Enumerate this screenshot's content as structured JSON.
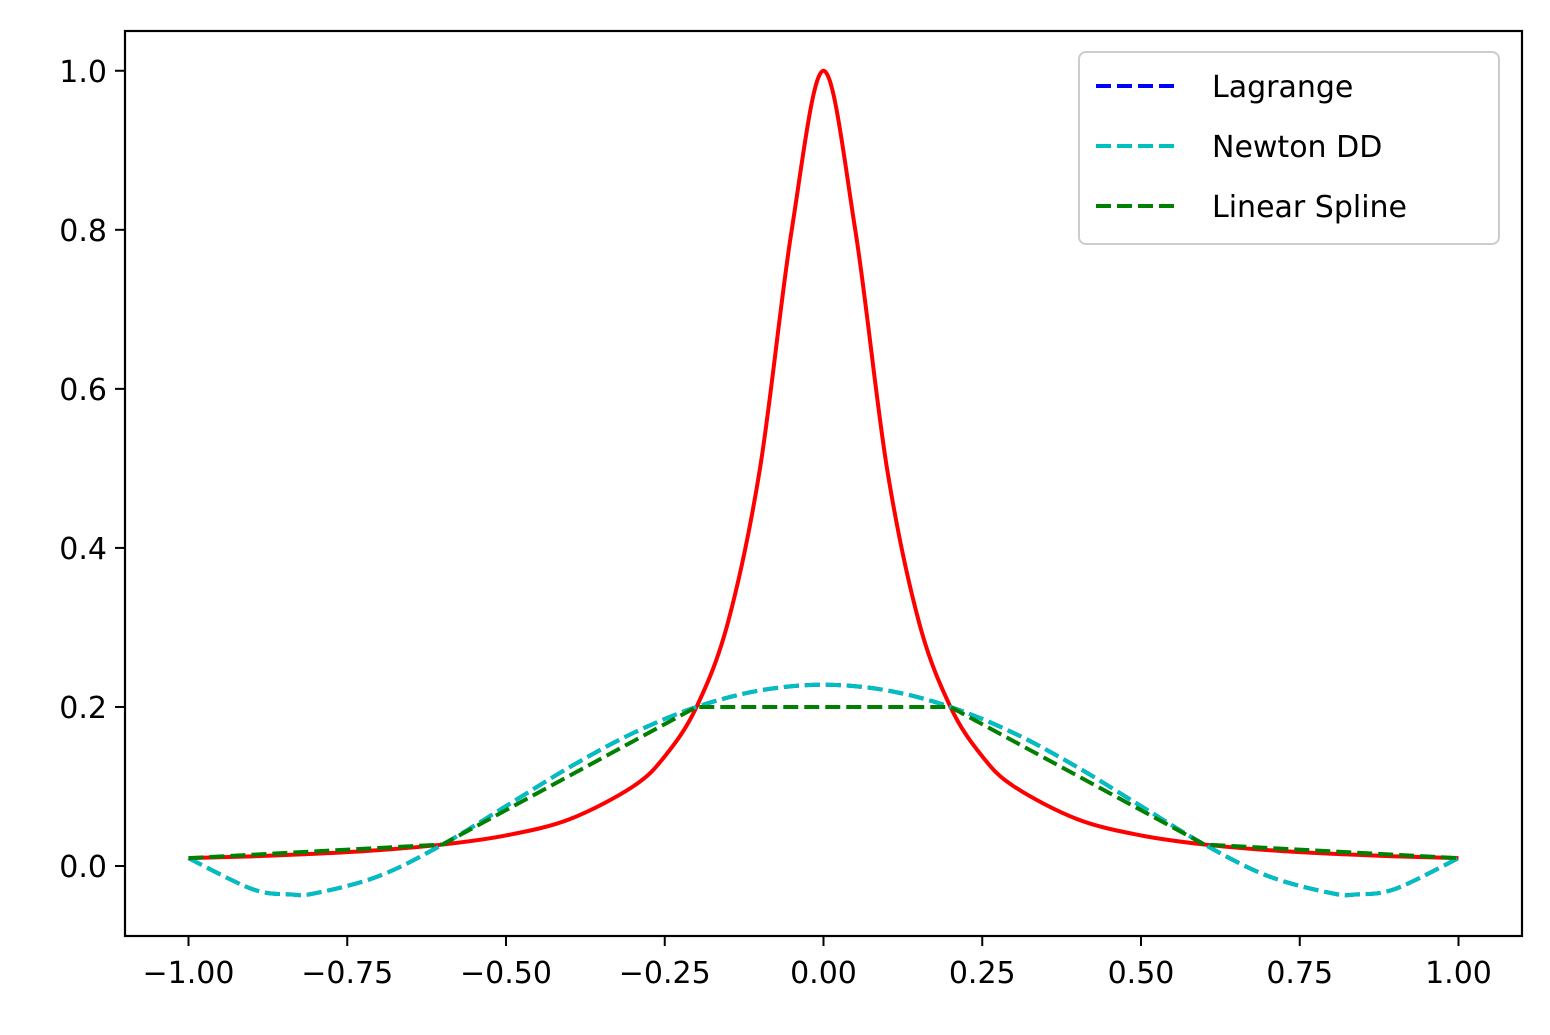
{
  "chart_data": {
    "type": "line",
    "title": "",
    "xlabel": "",
    "ylabel": "",
    "xlim": [
      -1.1,
      1.1
    ],
    "ylim": [
      -0.088,
      1.05
    ],
    "xticks": [
      -1.0,
      -0.75,
      -0.5,
      -0.25,
      0.0,
      0.25,
      0.5,
      0.75,
      1.0
    ],
    "xtick_labels": [
      "−1.00",
      "−0.75",
      "−0.50",
      "−0.25",
      "0.00",
      "0.25",
      "0.50",
      "0.75",
      "1.00"
    ],
    "yticks": [
      0.0,
      0.2,
      0.4,
      0.6,
      0.8,
      1.0
    ],
    "ytick_labels": [
      "0.0",
      "0.2",
      "0.4",
      "0.6",
      "0.8",
      "1.0"
    ],
    "grid": false,
    "legend_position": "top-right",
    "interpolation_nodes": {
      "x": [
        -1.0,
        -0.6,
        -0.2,
        0.2,
        0.6,
        1.0
      ],
      "y": [
        0.0099,
        0.027,
        0.2,
        0.2,
        0.027,
        0.0099
      ]
    },
    "series": [
      {
        "key": "function",
        "color": "#ff0000",
        "style": "solid",
        "x": [
          -1.0,
          -0.9,
          -0.8,
          -0.7,
          -0.6,
          -0.5,
          -0.4,
          -0.3,
          -0.25,
          -0.2,
          -0.15,
          -0.1,
          -0.05,
          0.0,
          0.05,
          0.1,
          0.15,
          0.2,
          0.25,
          0.3,
          0.4,
          0.5,
          0.6,
          0.7,
          0.8,
          0.9,
          1.0
        ],
        "y": [
          0.0099,
          0.0122,
          0.0154,
          0.02,
          0.027,
          0.0385,
          0.0588,
          0.1,
          0.1379,
          0.2,
          0.3077,
          0.5,
          0.8,
          1.0,
          0.8,
          0.5,
          0.3077,
          0.2,
          0.1379,
          0.1,
          0.0588,
          0.0385,
          0.027,
          0.02,
          0.0154,
          0.0122,
          0.0099
        ]
      },
      {
        "name": "Lagrange",
        "color": "#0000ff",
        "style": "dashed",
        "x": [
          -1.0,
          -0.9,
          -0.84,
          -0.8,
          -0.7,
          -0.6,
          -0.5,
          -0.4,
          -0.3,
          -0.2,
          -0.1,
          0.0,
          0.1,
          0.2,
          0.3,
          0.4,
          0.5,
          0.6,
          0.7,
          0.8,
          0.84,
          0.9,
          1.0
        ],
        "y": [
          0.0099,
          -0.0289,
          -0.0357,
          -0.0342,
          -0.0126,
          0.027,
          0.0753,
          0.1242,
          0.1671,
          0.2,
          0.2208,
          0.2279,
          0.2208,
          0.2,
          0.1671,
          0.1242,
          0.0753,
          0.027,
          -0.0126,
          -0.0342,
          -0.0357,
          -0.0289,
          0.0099
        ]
      },
      {
        "name": "Newton DD",
        "color": "#00bfbf",
        "style": "dashed",
        "x": [
          -1.0,
          -0.9,
          -0.84,
          -0.8,
          -0.7,
          -0.6,
          -0.5,
          -0.4,
          -0.3,
          -0.2,
          -0.1,
          0.0,
          0.1,
          0.2,
          0.3,
          0.4,
          0.5,
          0.6,
          0.7,
          0.8,
          0.84,
          0.9,
          1.0
        ],
        "y": [
          0.0099,
          -0.0289,
          -0.0357,
          -0.0342,
          -0.0126,
          0.027,
          0.0753,
          0.1242,
          0.1671,
          0.2,
          0.2208,
          0.2279,
          0.2208,
          0.2,
          0.1671,
          0.1242,
          0.0753,
          0.027,
          -0.0126,
          -0.0342,
          -0.0357,
          -0.0289,
          0.0099
        ]
      },
      {
        "name": "Linear Spline",
        "color": "#008000",
        "style": "dashed",
        "x": [
          -1.0,
          -0.6,
          -0.2,
          0.2,
          0.6,
          1.0
        ],
        "y": [
          0.0099,
          0.027,
          0.2,
          0.2,
          0.027,
          0.0099
        ]
      }
    ]
  },
  "legend": {
    "entries": [
      {
        "label": "Lagrange",
        "color": "#0000ff"
      },
      {
        "label": "Newton DD",
        "color": "#00bfbf"
      },
      {
        "label": "Linear Spline",
        "color": "#008000"
      }
    ]
  }
}
